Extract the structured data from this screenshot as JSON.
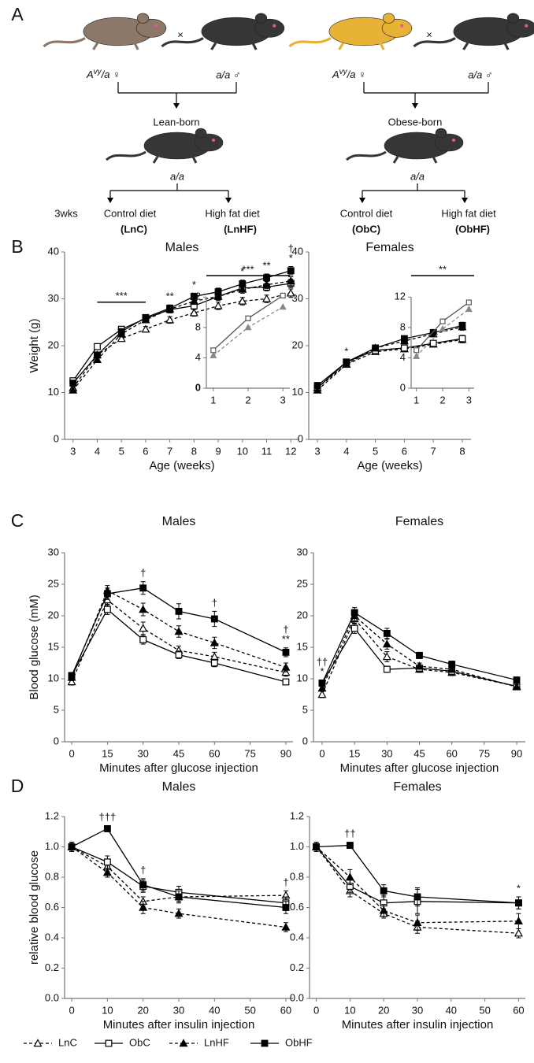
{
  "panel_a": {
    "label": "A",
    "age": "3wks",
    "crosses": [
      {
        "female": {
          "base": "A",
          "sup": "vy",
          "rest": "/a ♀"
        },
        "times": "×",
        "male": "a/a ♂",
        "offspring": "Lean-born",
        "genotype": "a/a",
        "diets": [
          {
            "name": "Control diet",
            "code": "(LnC)"
          },
          {
            "name": "High fat diet",
            "code": "(LnHF)"
          }
        ]
      },
      {
        "female": {
          "base": "A",
          "sup": "vy",
          "rest": "/a ♀"
        },
        "times": "×",
        "male": "a/a ♂",
        "offspring": "Obese-born",
        "genotype": "a/a",
        "diets": [
          {
            "name": "Control diet",
            "code": "(ObC)"
          },
          {
            "name": "High fat diet",
            "code": "(ObHF)"
          }
        ]
      }
    ]
  },
  "chart_data": [
    {
      "type": "line",
      "panel": "B",
      "title": "Males",
      "x_label": "Age (weeks)",
      "y_label": "Weight (g)",
      "x": [
        3,
        4,
        5,
        6,
        7,
        8,
        9,
        10,
        11,
        12
      ],
      "xlim": [
        2.65,
        12.35
      ],
      "xticks": [
        3,
        4,
        5,
        6,
        7,
        8,
        9,
        10,
        11,
        12
      ],
      "ylim": [
        0,
        40
      ],
      "yticks": [
        0,
        10,
        20,
        30,
        40
      ],
      "series": [
        {
          "name": "LnC",
          "color": "#000000",
          "marker": "triangle-open",
          "dashed": true,
          "values": [
            11,
            18,
            21.5,
            23.5,
            25.5,
            27,
            28.5,
            29.5,
            30,
            31.2
          ],
          "errors": [
            0.5,
            0.6,
            0.6,
            0.6,
            0.7,
            0.7,
            0.8,
            0.8,
            0.8,
            0.9
          ]
        },
        {
          "name": "ObC",
          "color": "#000000",
          "marker": "square-open",
          "dashed": false,
          "values": [
            12.5,
            19.8,
            23.5,
            25.8,
            27.7,
            28.5,
            30.5,
            32.3,
            32.5,
            33.3
          ],
          "errors": [
            0.5,
            0.6,
            0.6,
            0.6,
            0.7,
            0.7,
            0.8,
            0.8,
            0.8,
            0.9
          ]
        },
        {
          "name": "LnHF",
          "color": "#000000",
          "marker": "triangle",
          "dashed": true,
          "values": [
            10.5,
            17,
            22.5,
            25.5,
            27.8,
            29.5,
            30.5,
            32,
            33,
            33.8
          ],
          "errors": [
            0.5,
            0.6,
            0.6,
            0.6,
            0.7,
            0.7,
            0.8,
            0.8,
            0.8,
            0.9
          ]
        },
        {
          "name": "ObHF",
          "color": "#000000",
          "marker": "square",
          "dashed": false,
          "values": [
            12,
            18,
            23,
            26,
            28,
            30.5,
            31.5,
            33.2,
            34.5,
            36
          ],
          "errors": [
            0.5,
            0.6,
            0.6,
            0.6,
            0.7,
            0.7,
            0.8,
            0.8,
            0.8,
            0.9
          ]
        }
      ],
      "annotations": [
        {
          "x": [
            4,
            6
          ],
          "text": "***"
        },
        {
          "x": 7,
          "texts": [
            "**"
          ]
        },
        {
          "x": 8,
          "texts": [
            "*"
          ]
        },
        {
          "x": 10,
          "texts": [
            "*"
          ]
        },
        {
          "x": 11,
          "texts": [
            "**"
          ]
        },
        {
          "x": 12,
          "texts": [
            "†",
            "*"
          ]
        }
      ],
      "inset": {
        "x": [
          1,
          2,
          3
        ],
        "xlim": [
          0.8,
          3.2
        ],
        "xticks": [
          1,
          2,
          3
        ],
        "ylim": [
          0,
          14
        ],
        "yticks": [
          0,
          4,
          8,
          12
        ],
        "series": [
          {
            "marker": "square-open",
            "dashed": false,
            "color": "#555555",
            "values": [
              5,
              9.2,
              12.2
            ]
          },
          {
            "marker": "triangle",
            "dashed": true,
            "color": "#888888",
            "values": [
              4.3,
              8,
              10.7
            ]
          }
        ],
        "annotation": "***"
      }
    },
    {
      "type": "line",
      "title": "Females",
      "x_label": "Age (weeks)",
      "x": [
        3,
        4,
        5,
        6,
        7,
        8
      ],
      "xlim": [
        2.7,
        8.3
      ],
      "xticks": [
        3,
        4,
        5,
        6,
        7,
        8
      ],
      "ylim": [
        0,
        40
      ],
      "yticks": [
        0,
        10,
        20,
        30,
        40
      ],
      "series": [
        {
          "name": "LnC",
          "color": "#000000",
          "marker": "triangle-open",
          "dashed": true,
          "values": [
            11,
            16,
            18.7,
            19.3,
            20.3,
            21.3
          ],
          "errors": [
            0.5,
            0.5,
            0.6,
            0.6,
            0.6,
            0.7
          ]
        },
        {
          "name": "ObC",
          "color": "#000000",
          "marker": "square-open",
          "dashed": false,
          "values": [
            11,
            16.5,
            19,
            19.5,
            20.5,
            21.5
          ],
          "errors": [
            0.5,
            0.5,
            0.6,
            0.6,
            0.6,
            0.7
          ]
        },
        {
          "name": "LnHF",
          "color": "#000000",
          "marker": "triangle",
          "dashed": true,
          "values": [
            10.5,
            16,
            19.5,
            21,
            22.5,
            24
          ],
          "errors": [
            0.5,
            0.5,
            0.6,
            0.6,
            0.6,
            0.7
          ]
        },
        {
          "name": "ObHF",
          "color": "#000000",
          "marker": "square",
          "dashed": false,
          "values": [
            11.5,
            16.5,
            19.5,
            21.5,
            22.8,
            24.3
          ],
          "errors": [
            0.5,
            0.5,
            0.6,
            0.6,
            0.6,
            0.7
          ]
        }
      ],
      "annotations": [
        {
          "x": 4,
          "texts": [
            "*"
          ]
        }
      ],
      "inset": {
        "x": [
          1,
          2,
          3
        ],
        "xlim": [
          0.8,
          3.2
        ],
        "xticks": [
          1,
          2,
          3
        ],
        "ylim": [
          0,
          14
        ],
        "yticks": [
          0,
          4,
          8,
          12
        ],
        "series": [
          {
            "marker": "square-open",
            "dashed": false,
            "color": "#555555",
            "values": [
              5,
              8.8,
              11.3
            ]
          },
          {
            "marker": "triangle",
            "dashed": true,
            "color": "#888888",
            "values": [
              4.2,
              7.8,
              10.4
            ]
          }
        ],
        "annotation": "**"
      }
    },
    {
      "type": "line",
      "panel": "C",
      "title": "Males",
      "x_label": "Minutes after glucose injection",
      "y_label": "Blood glucose (mM)",
      "x": [
        0,
        15,
        30,
        45,
        60,
        90
      ],
      "xlim": [
        -3,
        93
      ],
      "xticks": [
        0,
        15,
        30,
        45,
        60,
        75,
        90
      ],
      "ylim": [
        0,
        30
      ],
      "yticks": [
        0,
        5,
        10,
        15,
        20,
        25,
        30
      ],
      "series": [
        {
          "name": "LnC",
          "color": "#000000",
          "marker": "triangle-open",
          "dashed": true,
          "values": [
            9.5,
            22.5,
            18,
            14.5,
            13.5,
            11
          ],
          "errors": [
            0.5,
            0.8,
            1,
            0.7,
            0.7,
            0.6
          ]
        },
        {
          "name": "ObC",
          "color": "#000000",
          "marker": "square-open",
          "dashed": false,
          "values": [
            10.5,
            21,
            16.2,
            13.8,
            12.5,
            9.5
          ],
          "errors": [
            0.5,
            0.8,
            0.7,
            0.6,
            0.6,
            0.4
          ]
        },
        {
          "name": "LnHF",
          "color": "#000000",
          "marker": "triangle",
          "dashed": true,
          "values": [
            10.2,
            24,
            21,
            17.5,
            15.7,
            11.8
          ],
          "errors": [
            0.5,
            0.8,
            1,
            0.9,
            0.9,
            0.7
          ]
        },
        {
          "name": "ObHF",
          "color": "#000000",
          "marker": "square",
          "dashed": false,
          "values": [
            10.5,
            23.5,
            24.4,
            20.7,
            19.5,
            14.2
          ],
          "errors": [
            0.5,
            0.9,
            1,
            1.2,
            1.2,
            0.7
          ]
        }
      ],
      "annotations": [
        {
          "x": 30,
          "texts": [
            "†"
          ]
        },
        {
          "x": 60,
          "texts": [
            "†"
          ]
        },
        {
          "x": 90,
          "texts": [
            "†",
            "**"
          ]
        }
      ]
    },
    {
      "type": "line",
      "title": "Females",
      "x_label": "Minutes after glucose injection",
      "x": [
        0,
        15,
        30,
        45,
        60,
        90
      ],
      "xlim": [
        -4,
        94
      ],
      "xticks": [
        0,
        15,
        30,
        45,
        60,
        75,
        90
      ],
      "ylim": [
        0,
        30
      ],
      "yticks": [
        0,
        5,
        10,
        15,
        20,
        25,
        30
      ],
      "series": [
        {
          "name": "LnC",
          "color": "#000000",
          "marker": "triangle-open",
          "dashed": true,
          "values": [
            7.5,
            19.5,
            13.5,
            11.5,
            11,
            8.8
          ],
          "errors": [
            0.5,
            0.8,
            0.8,
            0.5,
            0.5,
            0.4
          ]
        },
        {
          "name": "ObC",
          "color": "#000000",
          "marker": "square-open",
          "dashed": false,
          "values": [
            9.3,
            18,
            11.5,
            11.7,
            11.2,
            8.8
          ],
          "errors": [
            0.5,
            0.8,
            0.5,
            0.5,
            0.5,
            0.4
          ]
        },
        {
          "name": "LnHF",
          "color": "#000000",
          "marker": "triangle",
          "dashed": true,
          "values": [
            8.5,
            20,
            15.5,
            12,
            11.5,
            8.7
          ],
          "errors": [
            0.5,
            0.8,
            0.8,
            0.5,
            0.5,
            0.4
          ]
        },
        {
          "name": "ObHF",
          "color": "#000000",
          "marker": "square",
          "dashed": false,
          "values": [
            9.3,
            20.5,
            17.2,
            13.7,
            12.3,
            9.8
          ],
          "errors": [
            0.5,
            0.8,
            0.8,
            0.5,
            0.5,
            0.4
          ]
        }
      ],
      "annotations": [
        {
          "x": 0,
          "texts": [
            "††",
            "*"
          ]
        }
      ]
    },
    {
      "type": "line",
      "panel": "D",
      "title": "Males",
      "x_label": "Minutes after insulin injection",
      "y_label": "relative blood glucose",
      "x": [
        0,
        10,
        20,
        30,
        60
      ],
      "xlim": [
        -2,
        62
      ],
      "xticks": [
        0,
        10,
        20,
        30,
        40,
        50,
        60
      ],
      "ylim": [
        0,
        1.2
      ],
      "yticks": [
        {
          "value": 0,
          "label": "0.0"
        },
        0.2,
        0.4,
        0.6,
        0.8,
        {
          "value": 1,
          "label": "1.0"
        },
        1.2
      ],
      "series": [
        {
          "name": "LnC",
          "color": "#000000",
          "marker": "triangle-open",
          "dashed": true,
          "values": [
            1,
            0.87,
            0.64,
            0.67,
            0.68
          ],
          "errors": [
            0.03,
            0.03,
            0.03,
            0.03,
            0.03
          ]
        },
        {
          "name": "ObC",
          "color": "#000000",
          "marker": "square-open",
          "dashed": false,
          "values": [
            1,
            0.9,
            0.74,
            0.7,
            0.63
          ],
          "errors": [
            0.03,
            0.04,
            0.04,
            0.04,
            0.04
          ]
        },
        {
          "name": "LnHF",
          "color": "#000000",
          "marker": "triangle",
          "dashed": true,
          "values": [
            1,
            0.83,
            0.6,
            0.56,
            0.47
          ],
          "errors": [
            0.03,
            0.03,
            0.04,
            0.03,
            0.03
          ]
        },
        {
          "name": "ObHF",
          "color": "#000000",
          "marker": "square",
          "dashed": false,
          "values": [
            1,
            1.12,
            0.75,
            0.67,
            0.6
          ],
          "errors": [
            0.03,
            0.02,
            0.04,
            0.04,
            0.04
          ]
        }
      ],
      "annotations": [
        {
          "x": 10,
          "texts": [
            "†††"
          ]
        },
        {
          "x": 20,
          "texts": [
            "†"
          ]
        },
        {
          "x": 60,
          "texts": [
            "†"
          ]
        }
      ]
    },
    {
      "type": "line",
      "title": "Females",
      "x_label": "Minutes after insulin injection",
      "x": [
        0,
        10,
        20,
        30,
        60
      ],
      "xlim": [
        -2,
        62
      ],
      "xticks": [
        0,
        10,
        20,
        30,
        40,
        50,
        60
      ],
      "ylim": [
        0,
        1.2
      ],
      "yticks": [
        {
          "value": 0,
          "label": "0.0"
        },
        0.2,
        0.4,
        0.6,
        0.8,
        {
          "value": 1,
          "label": "1.0"
        },
        1.2
      ],
      "series": [
        {
          "name": "LnC",
          "color": "#000000",
          "marker": "triangle-open",
          "dashed": true,
          "values": [
            1,
            0.71,
            0.56,
            0.47,
            0.43
          ],
          "errors": [
            0.03,
            0.04,
            0.03,
            0.04,
            0.03
          ]
        },
        {
          "name": "ObC",
          "color": "#000000",
          "marker": "square-open",
          "dashed": false,
          "values": [
            1,
            0.74,
            0.63,
            0.64,
            0.63
          ],
          "errors": [
            0.03,
            0.04,
            0.05,
            0.08,
            0.04
          ]
        },
        {
          "name": "LnHF",
          "color": "#000000",
          "marker": "triangle",
          "dashed": true,
          "values": [
            1,
            0.8,
            0.58,
            0.5,
            0.51
          ],
          "errors": [
            0.03,
            0.05,
            0.04,
            0.05,
            0.05
          ]
        },
        {
          "name": "ObHF",
          "color": "#000000",
          "marker": "square",
          "dashed": false,
          "values": [
            1,
            1.01,
            0.71,
            0.67,
            0.63
          ],
          "errors": [
            0.03,
            0.02,
            0.04,
            0.06,
            0.04
          ]
        }
      ],
      "annotations": [
        {
          "x": 10,
          "texts": [
            "††"
          ]
        },
        {
          "x": 60,
          "texts": [
            "*"
          ]
        }
      ]
    }
  ]
}
